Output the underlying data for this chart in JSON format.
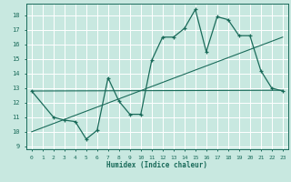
{
  "xlabel": "Humidex (Indice chaleur)",
  "bg_color": "#c8e8e0",
  "line_color": "#1a6b5a",
  "grid_color": "#ffffff",
  "xlim": [
    -0.5,
    23.5
  ],
  "ylim": [
    8.8,
    18.8
  ],
  "yticks": [
    9,
    10,
    11,
    12,
    13,
    14,
    15,
    16,
    17,
    18
  ],
  "xticks": [
    0,
    1,
    2,
    3,
    4,
    5,
    6,
    7,
    8,
    9,
    10,
    11,
    12,
    13,
    14,
    15,
    16,
    17,
    18,
    19,
    20,
    21,
    22,
    23
  ],
  "line1_x": [
    0,
    2,
    3,
    4,
    5,
    6,
    7,
    8,
    9,
    10,
    11,
    12,
    13,
    14,
    15,
    16,
    17,
    18,
    19,
    20,
    21,
    22,
    23
  ],
  "line1_y": [
    12.8,
    11.0,
    10.8,
    10.7,
    9.5,
    10.1,
    13.7,
    12.1,
    11.2,
    11.2,
    14.9,
    16.5,
    16.5,
    17.1,
    18.4,
    15.5,
    17.9,
    17.7,
    16.6,
    16.6,
    14.2,
    13.0,
    12.8
  ],
  "trend1_x": [
    0,
    23
  ],
  "trend1_y": [
    12.8,
    12.85
  ],
  "trend2_x": [
    0,
    23
  ],
  "trend2_y": [
    10.0,
    16.5
  ]
}
